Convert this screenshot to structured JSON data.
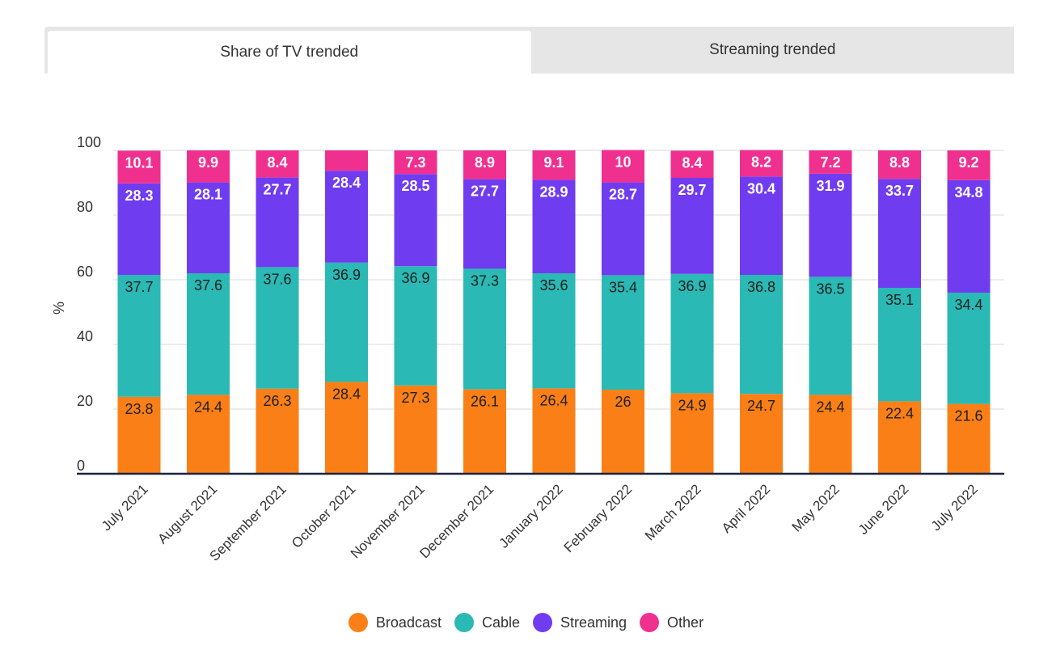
{
  "tabs": [
    {
      "label": "Share of TV trended",
      "active": true
    },
    {
      "label": "Streaming trended",
      "active": false
    }
  ],
  "colors": {
    "Broadcast": "#f97f16",
    "Cable": "#2ab9b4",
    "Streaming": "#703cf0",
    "Other": "#f0308f"
  },
  "chart_data": {
    "type": "bar",
    "stacked": true,
    "ylabel": "%",
    "xlabel": "",
    "ylim": [
      0,
      100
    ],
    "yticks": [
      0,
      20,
      40,
      60,
      80,
      100
    ],
    "grid": true,
    "legend_position": "bottom",
    "categories": [
      "July 2021",
      "August 2021",
      "September 2021",
      "October 2021",
      "November 2021",
      "December 2021",
      "January 2022",
      "February 2022",
      "March 2022",
      "April 2022",
      "May 2022",
      "June 2022",
      "July 2022"
    ],
    "series": [
      {
        "name": "Broadcast",
        "values": [
          23.8,
          24.4,
          26.3,
          28.4,
          27.3,
          26.1,
          26.4,
          26,
          24.9,
          24.7,
          24.4,
          22.4,
          21.6
        ]
      },
      {
        "name": "Cable",
        "values": [
          37.7,
          37.6,
          37.6,
          36.9,
          36.9,
          37.3,
          35.6,
          35.4,
          36.9,
          36.8,
          36.5,
          35.1,
          34.4
        ]
      },
      {
        "name": "Streaming",
        "values": [
          28.3,
          28.1,
          27.7,
          28.4,
          28.5,
          27.7,
          28.9,
          28.7,
          29.7,
          30.4,
          31.9,
          33.7,
          34.8
        ]
      },
      {
        "name": "Other",
        "values": [
          10.1,
          9.9,
          8.4,
          6.3,
          7.3,
          8.9,
          9.1,
          10,
          8.4,
          8.2,
          7.2,
          8.8,
          9.2
        ]
      }
    ],
    "label_hidden": {
      "Other": [
        false,
        false,
        false,
        true,
        false,
        false,
        false,
        false,
        false,
        false,
        false,
        false,
        false
      ]
    }
  }
}
